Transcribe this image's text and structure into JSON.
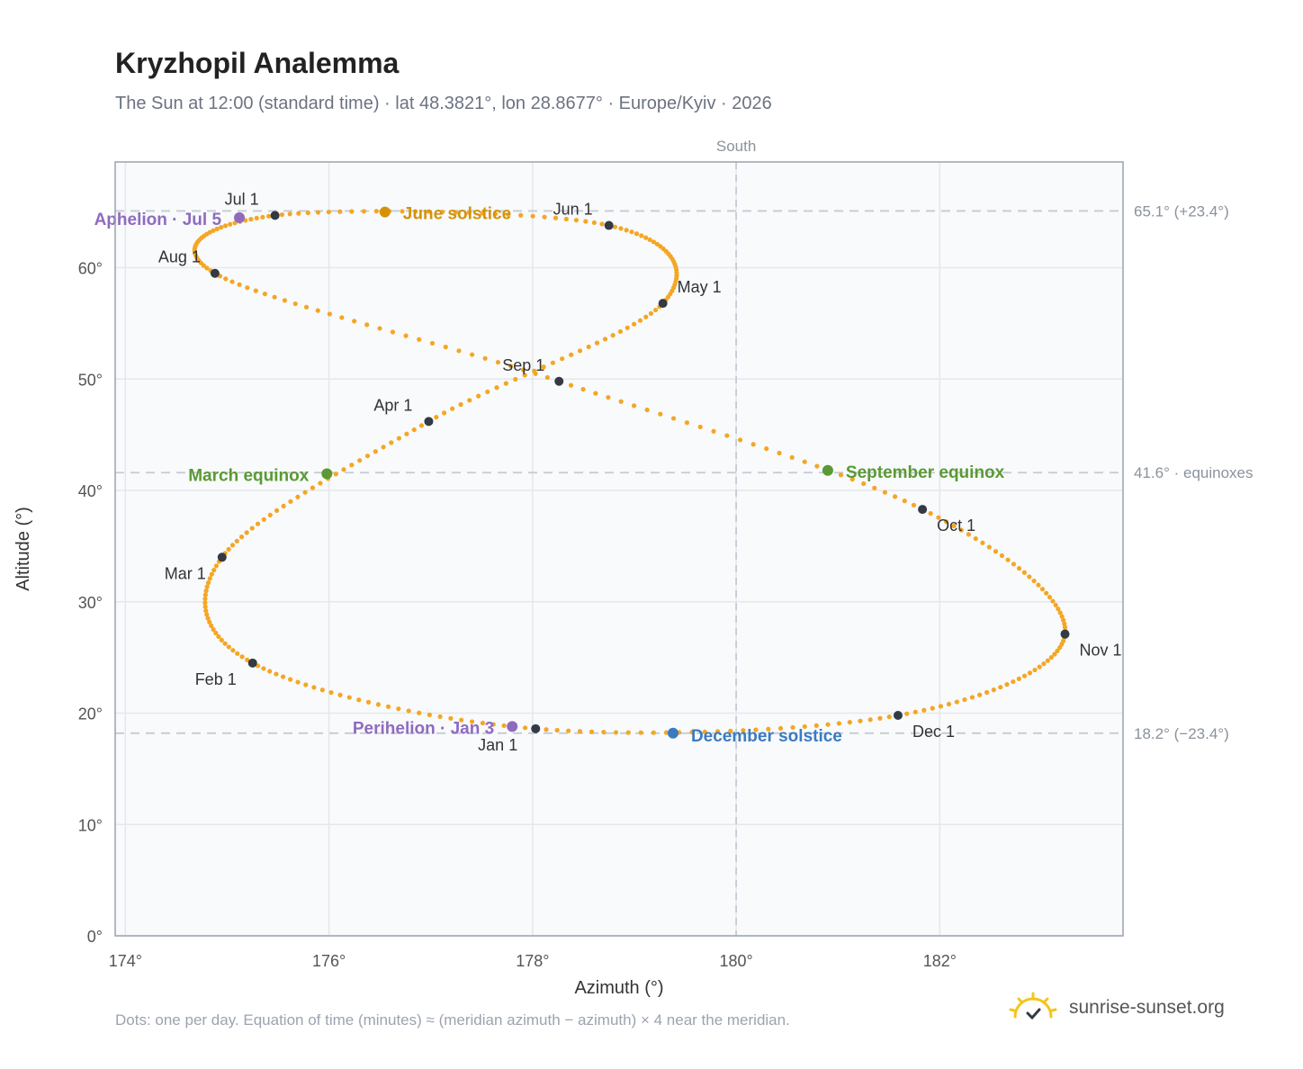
{
  "title": "Kryzhopil Analemma",
  "subtitle": "The Sun at 12:00 (standard time) · lat 48.3821°, lon 28.8677° · Europe/Kyiv · 2026",
  "footnote": "Dots: one per day. Equation of time (minutes) ≈ (meridian azimuth − azimuth) × 4 near the meridian.",
  "brand": {
    "name": "sunrise-sunset.org",
    "icon": "sun-icon",
    "color": "#f5c518"
  },
  "colors": {
    "curve": "#f5a623",
    "month_dot": "#333a44",
    "apsis": "#8e6bbf",
    "june_solstice": "#d4920c",
    "december_solstice": "#3b7bbf",
    "equinox": "#5a9a32",
    "reference_line": "#c5cbd3",
    "plot_bg": "#f8fafc",
    "grid": "#e5e7eb"
  },
  "chart_data": {
    "type": "scatter",
    "title": "Kryzhopil Analemma",
    "xlabel": "Azimuth (°)",
    "ylabel": "Altitude (°)",
    "xlim": [
      173.9,
      183.8
    ],
    "ylim": [
      0,
      69.5
    ],
    "xticks": [
      174,
      176,
      178,
      180,
      182
    ],
    "xtick_labels": [
      "174°",
      "176°",
      "178°",
      "180°",
      "182°"
    ],
    "yticks": [
      0,
      10,
      20,
      30,
      40,
      50,
      60
    ],
    "ytick_labels": [
      "0°",
      "10°",
      "20°",
      "30°",
      "40°",
      "50°",
      "60°"
    ],
    "grid": true,
    "meridian": {
      "x": 180,
      "label": "South"
    },
    "reference_lines": [
      {
        "y": 65.1,
        "label": "65.1° (+23.4°)"
      },
      {
        "y": 41.6,
        "label": "41.6° · equinoxes"
      },
      {
        "y": 18.2,
        "label": "18.2° (−23.4°)"
      }
    ],
    "months": [
      {
        "label": "Jan 1",
        "x": 178.03,
        "y": 18.6
      },
      {
        "label": "Feb 1",
        "x": 175.25,
        "y": 24.5
      },
      {
        "label": "Mar 1",
        "x": 174.95,
        "y": 34.0
      },
      {
        "label": "Apr 1",
        "x": 176.98,
        "y": 46.2
      },
      {
        "label": "May 1",
        "x": 179.28,
        "y": 56.8
      },
      {
        "label": "Jun 1",
        "x": 178.75,
        "y": 63.8
      },
      {
        "label": "Jul 1",
        "x": 175.47,
        "y": 64.7
      },
      {
        "label": "Aug 1",
        "x": 174.88,
        "y": 59.5
      },
      {
        "label": "Sep 1",
        "x": 178.26,
        "y": 49.8
      },
      {
        "label": "Oct 1",
        "x": 181.83,
        "y": 38.3
      },
      {
        "label": "Nov 1",
        "x": 183.23,
        "y": 27.1
      },
      {
        "label": "Dec 1",
        "x": 181.59,
        "y": 19.8
      }
    ],
    "events": [
      {
        "label": "Perihelion · Jan 3",
        "x": 177.8,
        "y": 18.8,
        "kind": "apsis"
      },
      {
        "label": "March equinox",
        "x": 175.98,
        "y": 41.5,
        "kind": "equinox"
      },
      {
        "label": "June solstice",
        "x": 176.55,
        "y": 65.0,
        "kind": "june_solstice"
      },
      {
        "label": "Aphelion · Jul 5",
        "x": 175.12,
        "y": 64.5,
        "kind": "apsis"
      },
      {
        "label": "September equinox",
        "x": 180.9,
        "y": 41.8,
        "kind": "equinox"
      },
      {
        "label": "December solstice",
        "x": 179.38,
        "y": 18.2,
        "kind": "december_solstice"
      }
    ]
  }
}
